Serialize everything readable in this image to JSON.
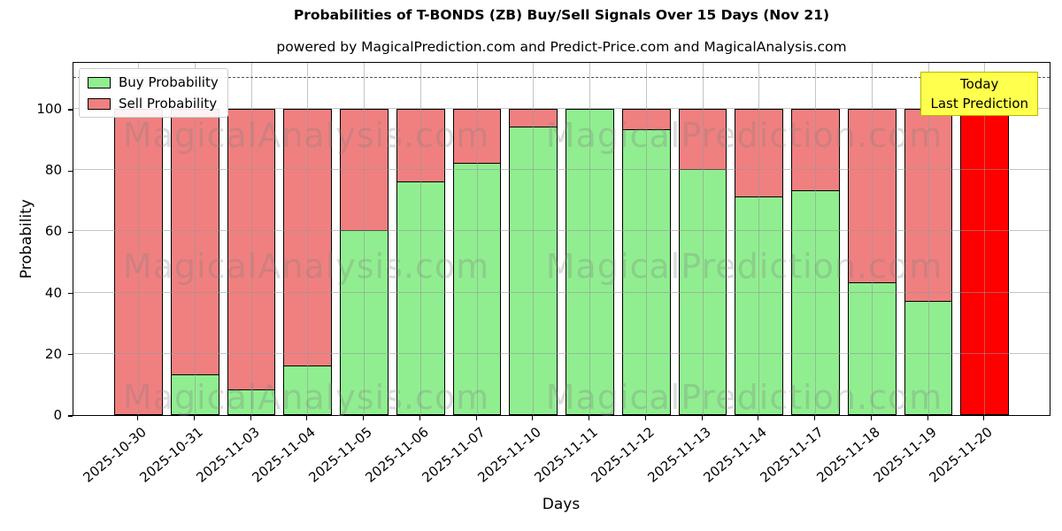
{
  "title": "Probabilities of T-BONDS (ZB) Buy/Sell Signals Over 15 Days (Nov 21)",
  "subtitle": "powered by MagicalPrediction.com and Predict-Price.com and MagicalAnalysis.com",
  "legend": {
    "buy_label": "Buy Probability",
    "sell_label": "Sell Probability"
  },
  "annotation_box": {
    "line1": "Today",
    "line2": "Last Prediction",
    "bg_color": "#ffff4d",
    "border_color": "#b8b800"
  },
  "watermarks": {
    "left_text": "MagicalAnalysis.com",
    "right_text": "MagicalPrediction.com"
  },
  "colors": {
    "buy": "#90ee90",
    "sell": "#f08080",
    "today_sell": "#ff0000",
    "bar_edge": "#000000",
    "grid": "#b0b0b0",
    "dashed_line": "#555555"
  },
  "chart_data": {
    "type": "bar",
    "stacked": true,
    "title": "Probabilities of T-BONDS (ZB) Buy/Sell Signals Over 15 Days (Nov 21)",
    "xlabel": "Days",
    "ylabel": "Probability",
    "categories": [
      "2025-10-30",
      "2025-10-31",
      "2025-11-03",
      "2025-11-04",
      "2025-11-05",
      "2025-11-06",
      "2025-11-07",
      "2025-11-10",
      "2025-11-11",
      "2025-11-12",
      "2025-11-13",
      "2025-11-14",
      "2025-11-17",
      "2025-11-18",
      "2025-11-19",
      "2025-11-20"
    ],
    "series": [
      {
        "name": "Buy Probability",
        "color": "#90ee90",
        "values": [
          0,
          13,
          8,
          16,
          60,
          76,
          82,
          94,
          100,
          93,
          80,
          71,
          73,
          43,
          37,
          0
        ]
      },
      {
        "name": "Sell Probability",
        "color": "#f08080",
        "values": [
          100,
          87,
          92,
          84,
          40,
          24,
          18,
          6,
          0,
          7,
          20,
          29,
          27,
          57,
          63,
          100
        ]
      }
    ],
    "today_bar_index": 15,
    "today_bar_color": "#ff0000",
    "yticks": [
      0,
      20,
      40,
      60,
      80,
      100
    ],
    "ylim": [
      0,
      115.6
    ],
    "dashed_line_y": 110,
    "grid": true,
    "legend_position": "upper left"
  }
}
